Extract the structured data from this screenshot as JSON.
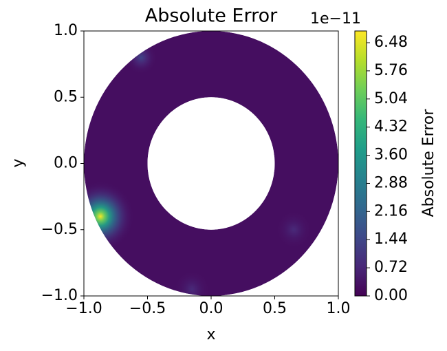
{
  "chart_data": {
    "type": "contourf",
    "title": "Absolute Error",
    "xlabel": "x",
    "ylabel": "y",
    "xlim": [
      -1,
      1
    ],
    "ylim": [
      -1,
      1
    ],
    "xticks": [
      {
        "value": -1,
        "label": "−1.0"
      },
      {
        "value": -0.5,
        "label": "−0.5"
      },
      {
        "value": 0,
        "label": "0.0"
      },
      {
        "value": 0.5,
        "label": "0.5"
      },
      {
        "value": 1,
        "label": "1.0"
      }
    ],
    "yticks": [
      {
        "value": -1,
        "label": "−1.0"
      },
      {
        "value": -0.5,
        "label": "−0.5"
      },
      {
        "value": 0,
        "label": "0.0"
      },
      {
        "value": 0.5,
        "label": "0.5"
      },
      {
        "value": 1,
        "label": "1.0"
      }
    ],
    "domain": {
      "outer_radius": 1,
      "inner_radius": 0.5
    },
    "field": {
      "base": 0.25,
      "peaks": [
        {
          "x": -0.87,
          "y": -0.4,
          "value": 6.7,
          "radius": 0.28
        },
        {
          "x": -0.55,
          "y": 0.8,
          "value": 1.4,
          "radius": 0.14
        },
        {
          "x": 0.65,
          "y": -0.5,
          "value": 0.8,
          "radius": 0.16
        },
        {
          "x": -0.15,
          "y": -0.95,
          "value": 0.8,
          "radius": 0.16
        }
      ]
    },
    "colorbar": {
      "label": "Absolute Error",
      "offset_label": "1e−11",
      "lim": [
        0,
        6.78
      ],
      "ticks": [
        {
          "value": 0,
          "label": "0.00"
        },
        {
          "value": 0.72,
          "label": "0.72"
        },
        {
          "value": 1.44,
          "label": "1.44"
        },
        {
          "value": 2.16,
          "label": "2.16"
        },
        {
          "value": 2.88,
          "label": "2.88"
        },
        {
          "value": 3.6,
          "label": "3.60"
        },
        {
          "value": 4.32,
          "label": "4.32"
        },
        {
          "value": 5.04,
          "label": "5.04"
        },
        {
          "value": 5.76,
          "label": "5.76"
        },
        {
          "value": 6.48,
          "label": "6.48"
        }
      ],
      "colormap": [
        "#440154",
        "#482878",
        "#3e4989",
        "#31688e",
        "#26828e",
        "#1f9e89",
        "#35b779",
        "#6ece58",
        "#b5de2b",
        "#fde725"
      ]
    }
  }
}
